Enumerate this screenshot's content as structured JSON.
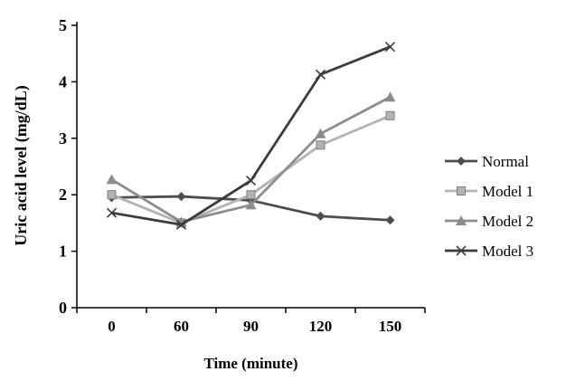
{
  "chart_data": {
    "type": "line",
    "title": "",
    "xlabel": "Time (minute)",
    "ylabel": "Uric acid level (mg/dL)",
    "categories": [
      "0",
      "60",
      "90",
      "120",
      "150"
    ],
    "y_ticks": [
      0,
      1,
      2,
      3,
      4,
      5
    ],
    "ylim": [
      0,
      5
    ],
    "grid": false,
    "legend_position": "right",
    "series": [
      {
        "name": "Normal",
        "marker": "diamond",
        "color": "#4d4d4d",
        "values": [
          1.95,
          1.97,
          1.9,
          1.62,
          1.55
        ]
      },
      {
        "name": "Model 1",
        "marker": "square",
        "color": "#b3b3b3",
        "values": [
          2.0,
          1.5,
          2.0,
          2.88,
          3.4
        ]
      },
      {
        "name": "Model 2",
        "marker": "triangle",
        "color": "#8c8c8c",
        "values": [
          2.27,
          1.52,
          1.82,
          3.08,
          3.73
        ]
      },
      {
        "name": "Model 3",
        "marker": "x",
        "color": "#3b3b3b",
        "values": [
          1.68,
          1.47,
          2.25,
          4.13,
          4.62
        ]
      }
    ]
  }
}
